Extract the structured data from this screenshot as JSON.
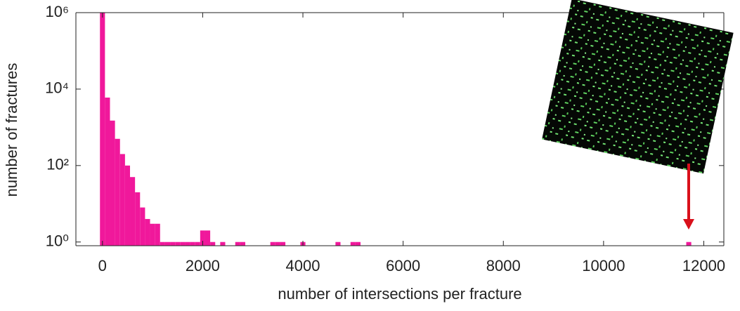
{
  "chart_data": {
    "type": "histogram",
    "x_label": "number of intersections per fracture",
    "y_label": "number of fractures",
    "color": "#f0189b",
    "log_y": true,
    "grid": false,
    "bins": [
      -50,
      50,
      150,
      250,
      350,
      450,
      550,
      650,
      750,
      850,
      950,
      1050,
      1150,
      1250,
      1350,
      1450,
      1550,
      1650,
      1750,
      1850,
      1950,
      2050,
      2150,
      2250,
      2350,
      2450,
      2550,
      2650,
      2750,
      2850,
      2950,
      3050,
      3150,
      3250,
      3350,
      3450,
      3550,
      3650,
      3750,
      3850,
      3950,
      4050,
      4150,
      4250,
      4350,
      4450,
      4550,
      4650,
      4750,
      4850,
      4950,
      5050,
      5150,
      5250,
      5350,
      5450,
      5550,
      5650,
      5750,
      5850,
      5950,
      6050,
      6150,
      6250,
      6350,
      6450,
      6550,
      6650,
      6750,
      6850,
      6950,
      7050,
      7150,
      7250,
      7350,
      7450,
      7550,
      7650,
      7750,
      7850,
      7950,
      8050,
      8150,
      8250,
      8350,
      8450,
      8550,
      8650,
      8750,
      8850,
      8950,
      9050,
      9150,
      9250,
      9350,
      9450,
      9550,
      9650,
      9750,
      9850,
      9950,
      10050,
      10150,
      10250,
      10350,
      10450,
      10550,
      10650,
      10750,
      10850,
      10950,
      11050,
      11150,
      11250,
      11350,
      11450,
      11550,
      11650,
      11750
    ],
    "values": [
      1000000,
      6000,
      1500,
      500,
      200,
      100,
      50,
      20,
      8,
      4,
      3,
      3,
      1,
      1,
      1,
      1,
      1,
      1,
      1,
      1,
      2,
      2,
      1,
      0,
      1,
      0,
      0,
      1,
      1,
      0,
      0,
      0,
      0,
      0,
      1,
      1,
      1,
      0,
      0,
      0,
      1,
      0,
      0,
      0,
      0,
      0,
      0,
      1,
      0,
      0,
      1,
      1,
      0,
      0,
      0,
      0,
      0,
      0,
      0,
      0,
      0,
      0,
      0,
      0,
      0,
      0,
      0,
      0,
      0,
      0,
      0,
      0,
      0,
      0,
      0,
      0,
      0,
      0,
      0,
      0,
      0,
      0,
      0,
      0,
      0,
      0,
      0,
      0,
      0,
      0,
      0,
      0,
      0,
      0,
      0,
      0,
      0,
      0,
      0,
      0,
      0,
      0,
      0,
      0,
      0,
      0,
      0,
      0,
      0,
      0,
      0,
      0,
      0,
      0,
      0,
      0,
      0,
      1
    ],
    "xlim": [
      -530,
      12400
    ],
    "xticks": [
      0,
      2000,
      4000,
      6000,
      8000,
      10000,
      12000
    ],
    "ylim": [
      0.8,
      1000000
    ],
    "yticks": [
      {
        "value": 1,
        "label": "10⁰"
      },
      {
        "value": 100,
        "label": "10²"
      },
      {
        "value": 10000,
        "label": "10⁴"
      },
      {
        "value": 1000000,
        "label": "10⁶"
      }
    ]
  }
}
